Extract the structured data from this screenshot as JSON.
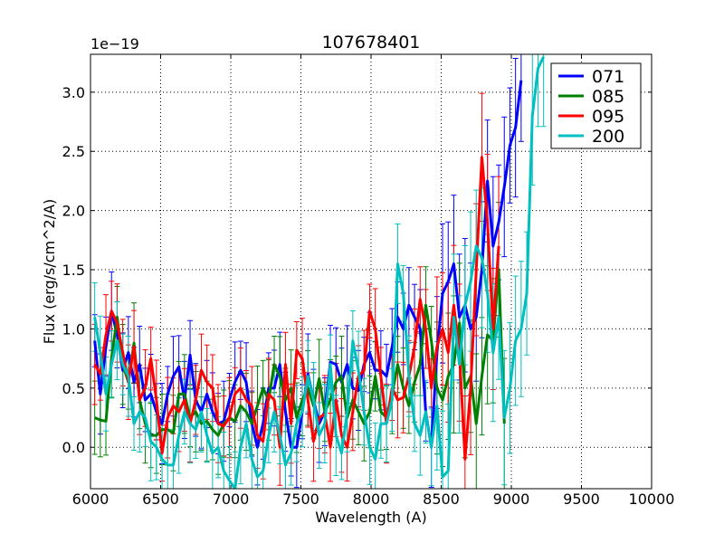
{
  "chart_data": {
    "type": "line",
    "title": "107678401",
    "xlabel": "Wavelength (A)",
    "ylabel": "Flux (erg/s/cm^2/A)",
    "offset_label": "1e−19",
    "xlim": [
      6000,
      10000
    ],
    "ylim": [
      -0.35,
      3.32
    ],
    "grid": true,
    "legend_position": "top-right",
    "x_ticks": [
      6000,
      6500,
      7000,
      7500,
      8000,
      8500,
      9000,
      9500,
      10000
    ],
    "x_tick_labels": [
      "6000",
      "6500",
      "7000",
      "7500",
      "8000",
      "8500",
      "9000",
      "9500",
      "10000"
    ],
    "y_ticks": [
      0.0,
      0.5,
      1.0,
      1.5,
      2.0,
      2.5,
      3.0
    ],
    "y_tick_labels": [
      "0.0",
      "0.5",
      "1.0",
      "1.5",
      "2.0",
      "2.5",
      "3.0"
    ],
    "x_start": 6030,
    "x_step": 40,
    "series": [
      {
        "name": "071",
        "color": "#0000ff",
        "values": [
          0.9,
          0.45,
          0.85,
          1.15,
          0.95,
          0.65,
          0.8,
          0.55,
          0.7,
          0.4,
          0.45,
          0.3,
          0.2,
          0.45,
          0.6,
          0.68,
          0.4,
          0.78,
          0.4,
          0.3,
          0.45,
          0.3,
          0.2,
          0.22,
          0.4,
          0.55,
          0.65,
          0.55,
          0.2,
          0.0,
          0.2,
          0.5,
          0.5,
          0.7,
          0.3,
          0.0,
          0.0,
          0.3,
          0.62,
          0.4,
          0.2,
          0.3,
          0.72,
          0.7,
          0.55,
          0.7,
          0.5,
          0.48,
          0.7,
          0.8,
          0.65,
          0.65,
          0.6,
          0.85,
          1.1,
          1.0,
          1.2,
          1.1,
          1.0,
          0.3,
          0.0,
          0.8,
          1.3,
          1.4,
          1.55,
          1.1,
          1.2,
          1.0,
          1.1,
          1.5,
          2.25,
          1.7,
          1.9,
          2.2,
          2.55,
          2.7,
          3.1
        ]
      },
      {
        "name": "085",
        "color": "#008000",
        "values": [
          0.25,
          0.23,
          0.22,
          0.75,
          1.1,
          0.7,
          0.55,
          0.88,
          0.4,
          0.2,
          0.1,
          0.1,
          0.15,
          0.15,
          0.12,
          0.45,
          0.45,
          0.25,
          0.3,
          0.2,
          0.22,
          0.15,
          0.1,
          0.2,
          0.25,
          0.22,
          0.35,
          0.3,
          0.2,
          0.35,
          0.5,
          0.4,
          0.7,
          0.6,
          0.4,
          0.5,
          0.25,
          0.4,
          0.5,
          0.35,
          0.58,
          0.3,
          0.4,
          0.55,
          0.6,
          0.25,
          0.4,
          0.3,
          0.2,
          0.3,
          0.6,
          0.3,
          0.25,
          0.45,
          0.7,
          0.5,
          0.35,
          0.55,
          0.7,
          1.2,
          0.9,
          0.5,
          0.4,
          0.6,
          0.7,
          1.05,
          0.5,
          0.6,
          0.2,
          0.6,
          0.95,
          0.9,
          1.5,
          0.2
        ]
      },
      {
        "name": "095",
        "color": "#ff0000",
        "values": [
          0.7,
          0.62,
          0.95,
          1.15,
          1.05,
          0.8,
          0.55,
          0.85,
          0.4,
          0.5,
          0.75,
          0.4,
          -0.05,
          0.25,
          0.35,
          0.3,
          0.4,
          0.2,
          0.4,
          0.65,
          0.55,
          0.5,
          0.2,
          0.18,
          0.25,
          0.45,
          0.5,
          0.4,
          0.35,
          0.1,
          0.05,
          0.45,
          0.4,
          0.0,
          0.7,
          0.2,
          0.82,
          0.75,
          0.4,
          0.05,
          0.25,
          0.28,
          0.0,
          0.4,
          0.1,
          0.0,
          0.3,
          0.6,
          0.65,
          1.15,
          1.0,
          0.6,
          0.2,
          0.5,
          0.4,
          0.42,
          0.6,
          0.85,
          1.25,
          1.0,
          0.5,
          0.85,
          1.0,
          0.8,
          1.2,
          0.8,
          -0.1,
          0.5,
          1.5,
          2.45,
          1.9,
          1.0,
          1.7
        ]
      },
      {
        "name": "200",
        "color": "#00bfbf",
        "values": [
          1.1,
          0.8,
          0.45,
          0.7,
          0.9,
          0.7,
          0.6,
          0.2,
          0.3,
          0.25,
          0.05,
          0.0,
          -0.1,
          -0.15,
          -0.15,
          0.1,
          0.3,
          0.2,
          0.15,
          0.3,
          0.1,
          -0.05,
          0.0,
          -0.2,
          -0.28,
          -0.35,
          0.0,
          0.2,
          -0.1,
          -0.25,
          -0.2,
          0.1,
          0.3,
          0.1,
          -0.15,
          -0.05,
          0.2,
          0.3,
          0.6,
          0.4,
          0.1,
          0.2,
          0.7,
          0.1,
          -0.05,
          0.3,
          0.9,
          0.65,
          0.3,
          0.0,
          -0.1,
          0.2,
          0.2,
          0.4,
          1.55,
          1.3,
          0.6,
          0.2,
          0.1,
          0.3,
          0.0,
          0.35,
          -0.25,
          -0.2,
          1.1,
          0.7,
          1.2,
          1.4,
          1.7,
          1.6,
          1.3,
          0.8,
          1.1,
          0.25,
          0.5,
          0.9,
          1.0,
          1.3,
          2.8,
          3.2,
          3.3
        ]
      }
    ]
  }
}
